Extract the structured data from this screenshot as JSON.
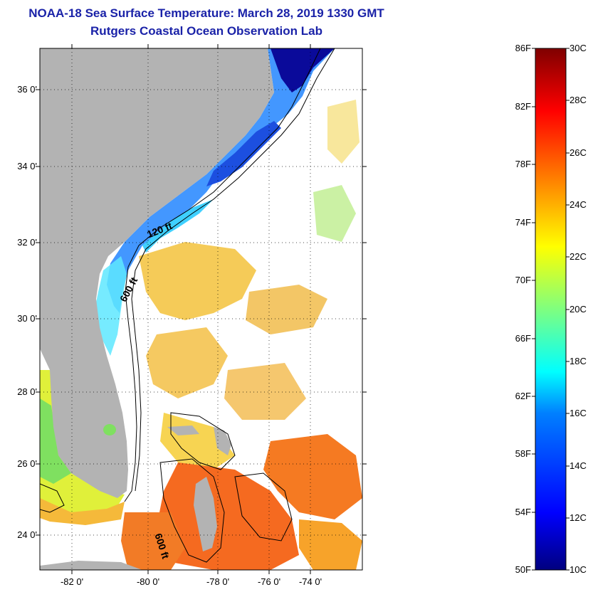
{
  "title": "NOAA-18 Sea Surface Temperature:  March 28, 2019 1330 GMT",
  "subtitle": "Rutgers Coastal Ocean Observation Lab",
  "lat_labels": [
    "36 0'",
    "34 0'",
    "32 0'",
    "30 0'",
    "28 0'",
    "26 0'",
    "24 0'"
  ],
  "lon_labels": [
    "-82 0'",
    "-80 0'",
    "-78 0'",
    "-76 0'",
    "-74 0'"
  ],
  "contour_labels": [
    "120 ft",
    "600 ft",
    "600 ft"
  ],
  "colorbar": {
    "fahrenheit": [
      "86F",
      "82F",
      "78F",
      "74F",
      "70F",
      "66F",
      "62F",
      "58F",
      "54F",
      "50F"
    ],
    "celsius": [
      "30C",
      "28C",
      "26C",
      "24C",
      "22C",
      "20C",
      "18C",
      "16C",
      "14C",
      "12C",
      "10C"
    ],
    "colors": [
      "#00007f",
      "#0000ff",
      "#007fff",
      "#00ffff",
      "#7fff7f",
      "#ffff00",
      "#ff7f00",
      "#ff0000",
      "#7f0000"
    ]
  },
  "colors": {
    "title": "#1a22a8",
    "land": "#b3b3b3",
    "ocean_nodata": "#ffffff"
  }
}
